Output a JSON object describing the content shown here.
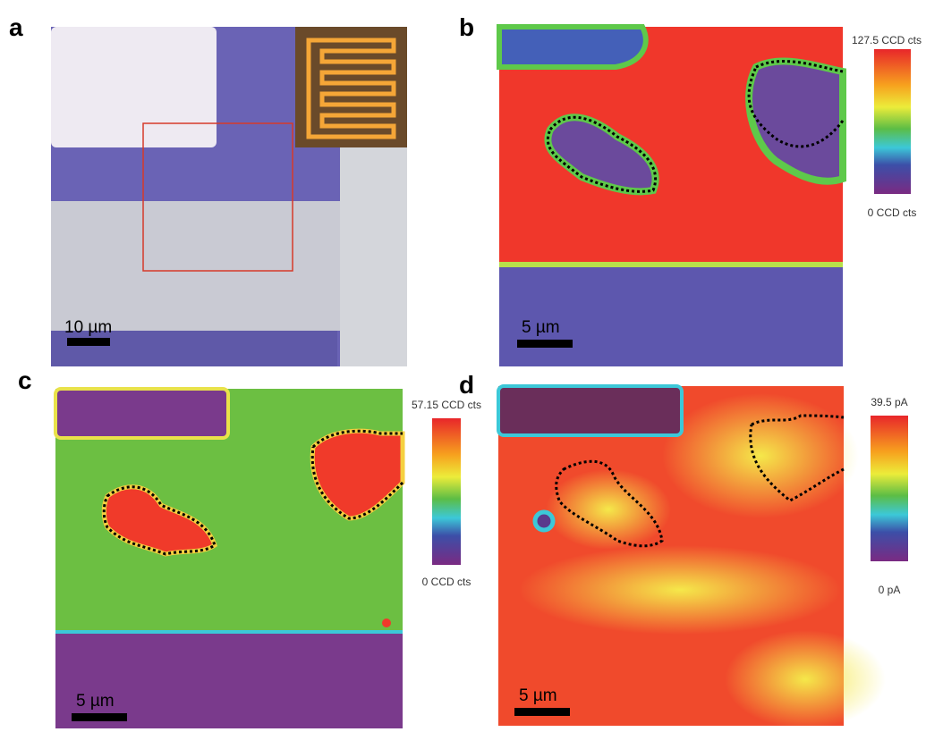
{
  "panels": [
    {
      "label": "a",
      "scale_bar": "10 µm"
    },
    {
      "label": "b",
      "scale_bar": "5 µm",
      "colorbar": {
        "max": "127.5 CCD cts",
        "min": "0 CCD cts"
      }
    },
    {
      "label": "c",
      "scale_bar": "5 µm",
      "colorbar": {
        "max": "57.15 CCD cts",
        "min": "0 CCD cts"
      }
    },
    {
      "label": "d",
      "scale_bar": "5 µm",
      "colorbar": {
        "max": "39.5 pA",
        "min": "0 pA"
      }
    }
  ]
}
